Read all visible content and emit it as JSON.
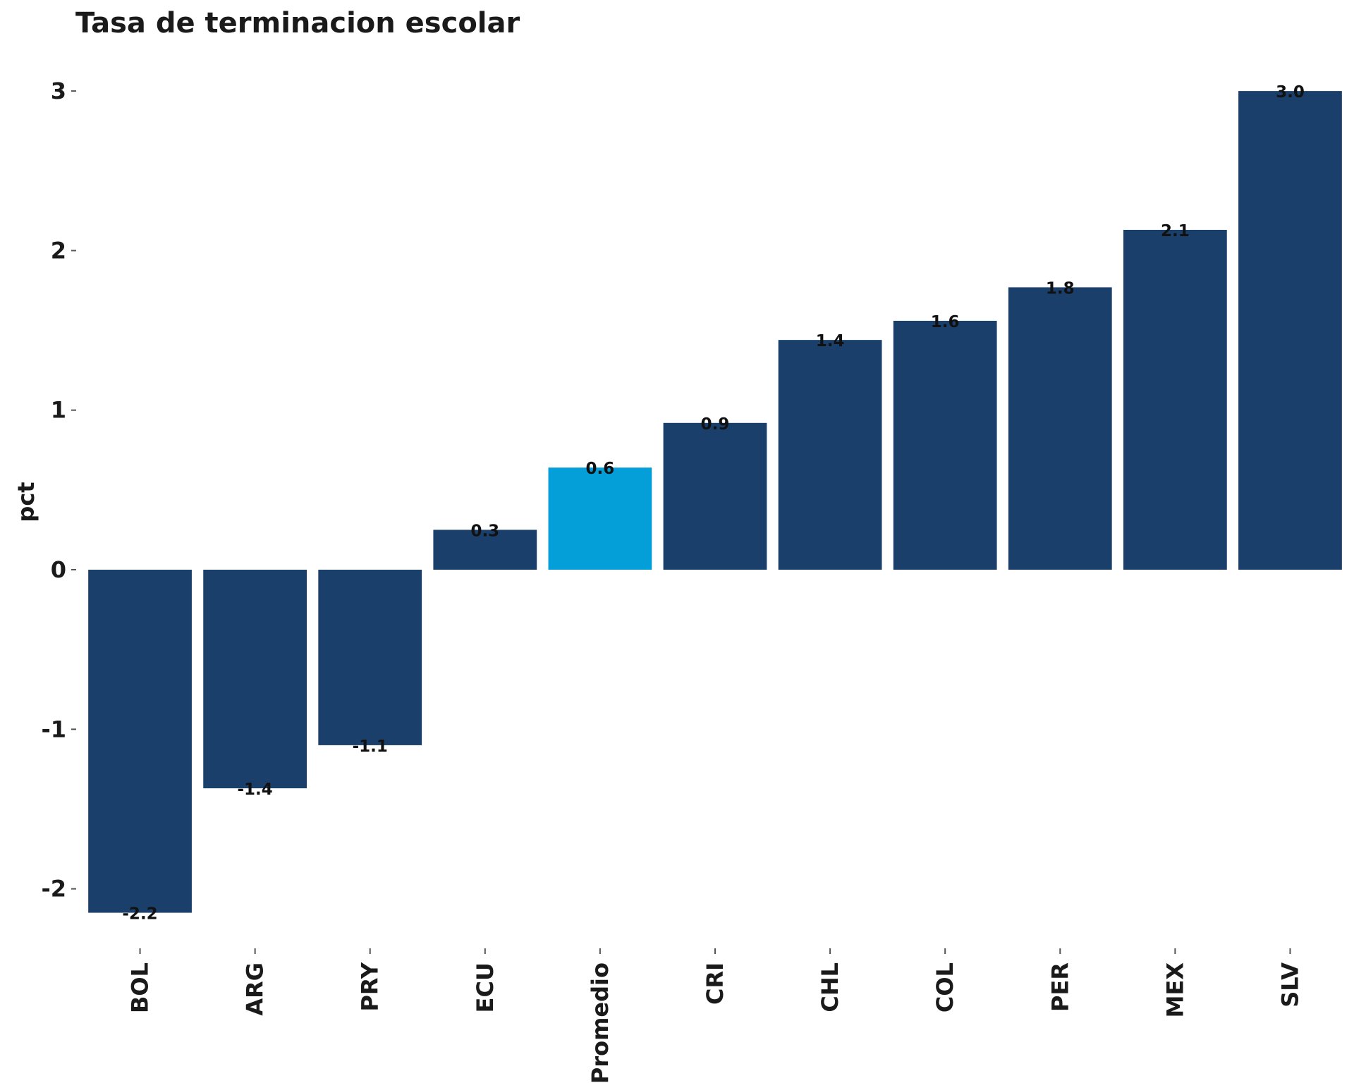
{
  "chart_data": {
    "type": "bar",
    "title": "Tasa de terminacion escolar",
    "xlabel": "",
    "ylabel": "pct",
    "ylim": [
      -2.4,
      3.2
    ],
    "yticks": [
      -2,
      -1,
      0,
      1,
      2,
      3
    ],
    "grid": false,
    "categories": [
      "BOL",
      "ARG",
      "PRY",
      "ECU",
      "Promedio",
      "CRI",
      "CHL",
      "COL",
      "PER",
      "MEX",
      "SLV"
    ],
    "values": [
      -2.15,
      -1.37,
      -1.1,
      0.25,
      0.64,
      0.92,
      1.44,
      1.56,
      1.77,
      2.13,
      3.0
    ],
    "data_labels": [
      "-2.2",
      "-1.4",
      "-1.1",
      "0.3",
      "0.6",
      "0.9",
      "1.4",
      "1.6",
      "1.8",
      "2.1",
      "3.0"
    ],
    "colors": {
      "bar": "#1b3f6b",
      "highlight": "#049fd9",
      "highlight_category": "Promedio"
    }
  }
}
